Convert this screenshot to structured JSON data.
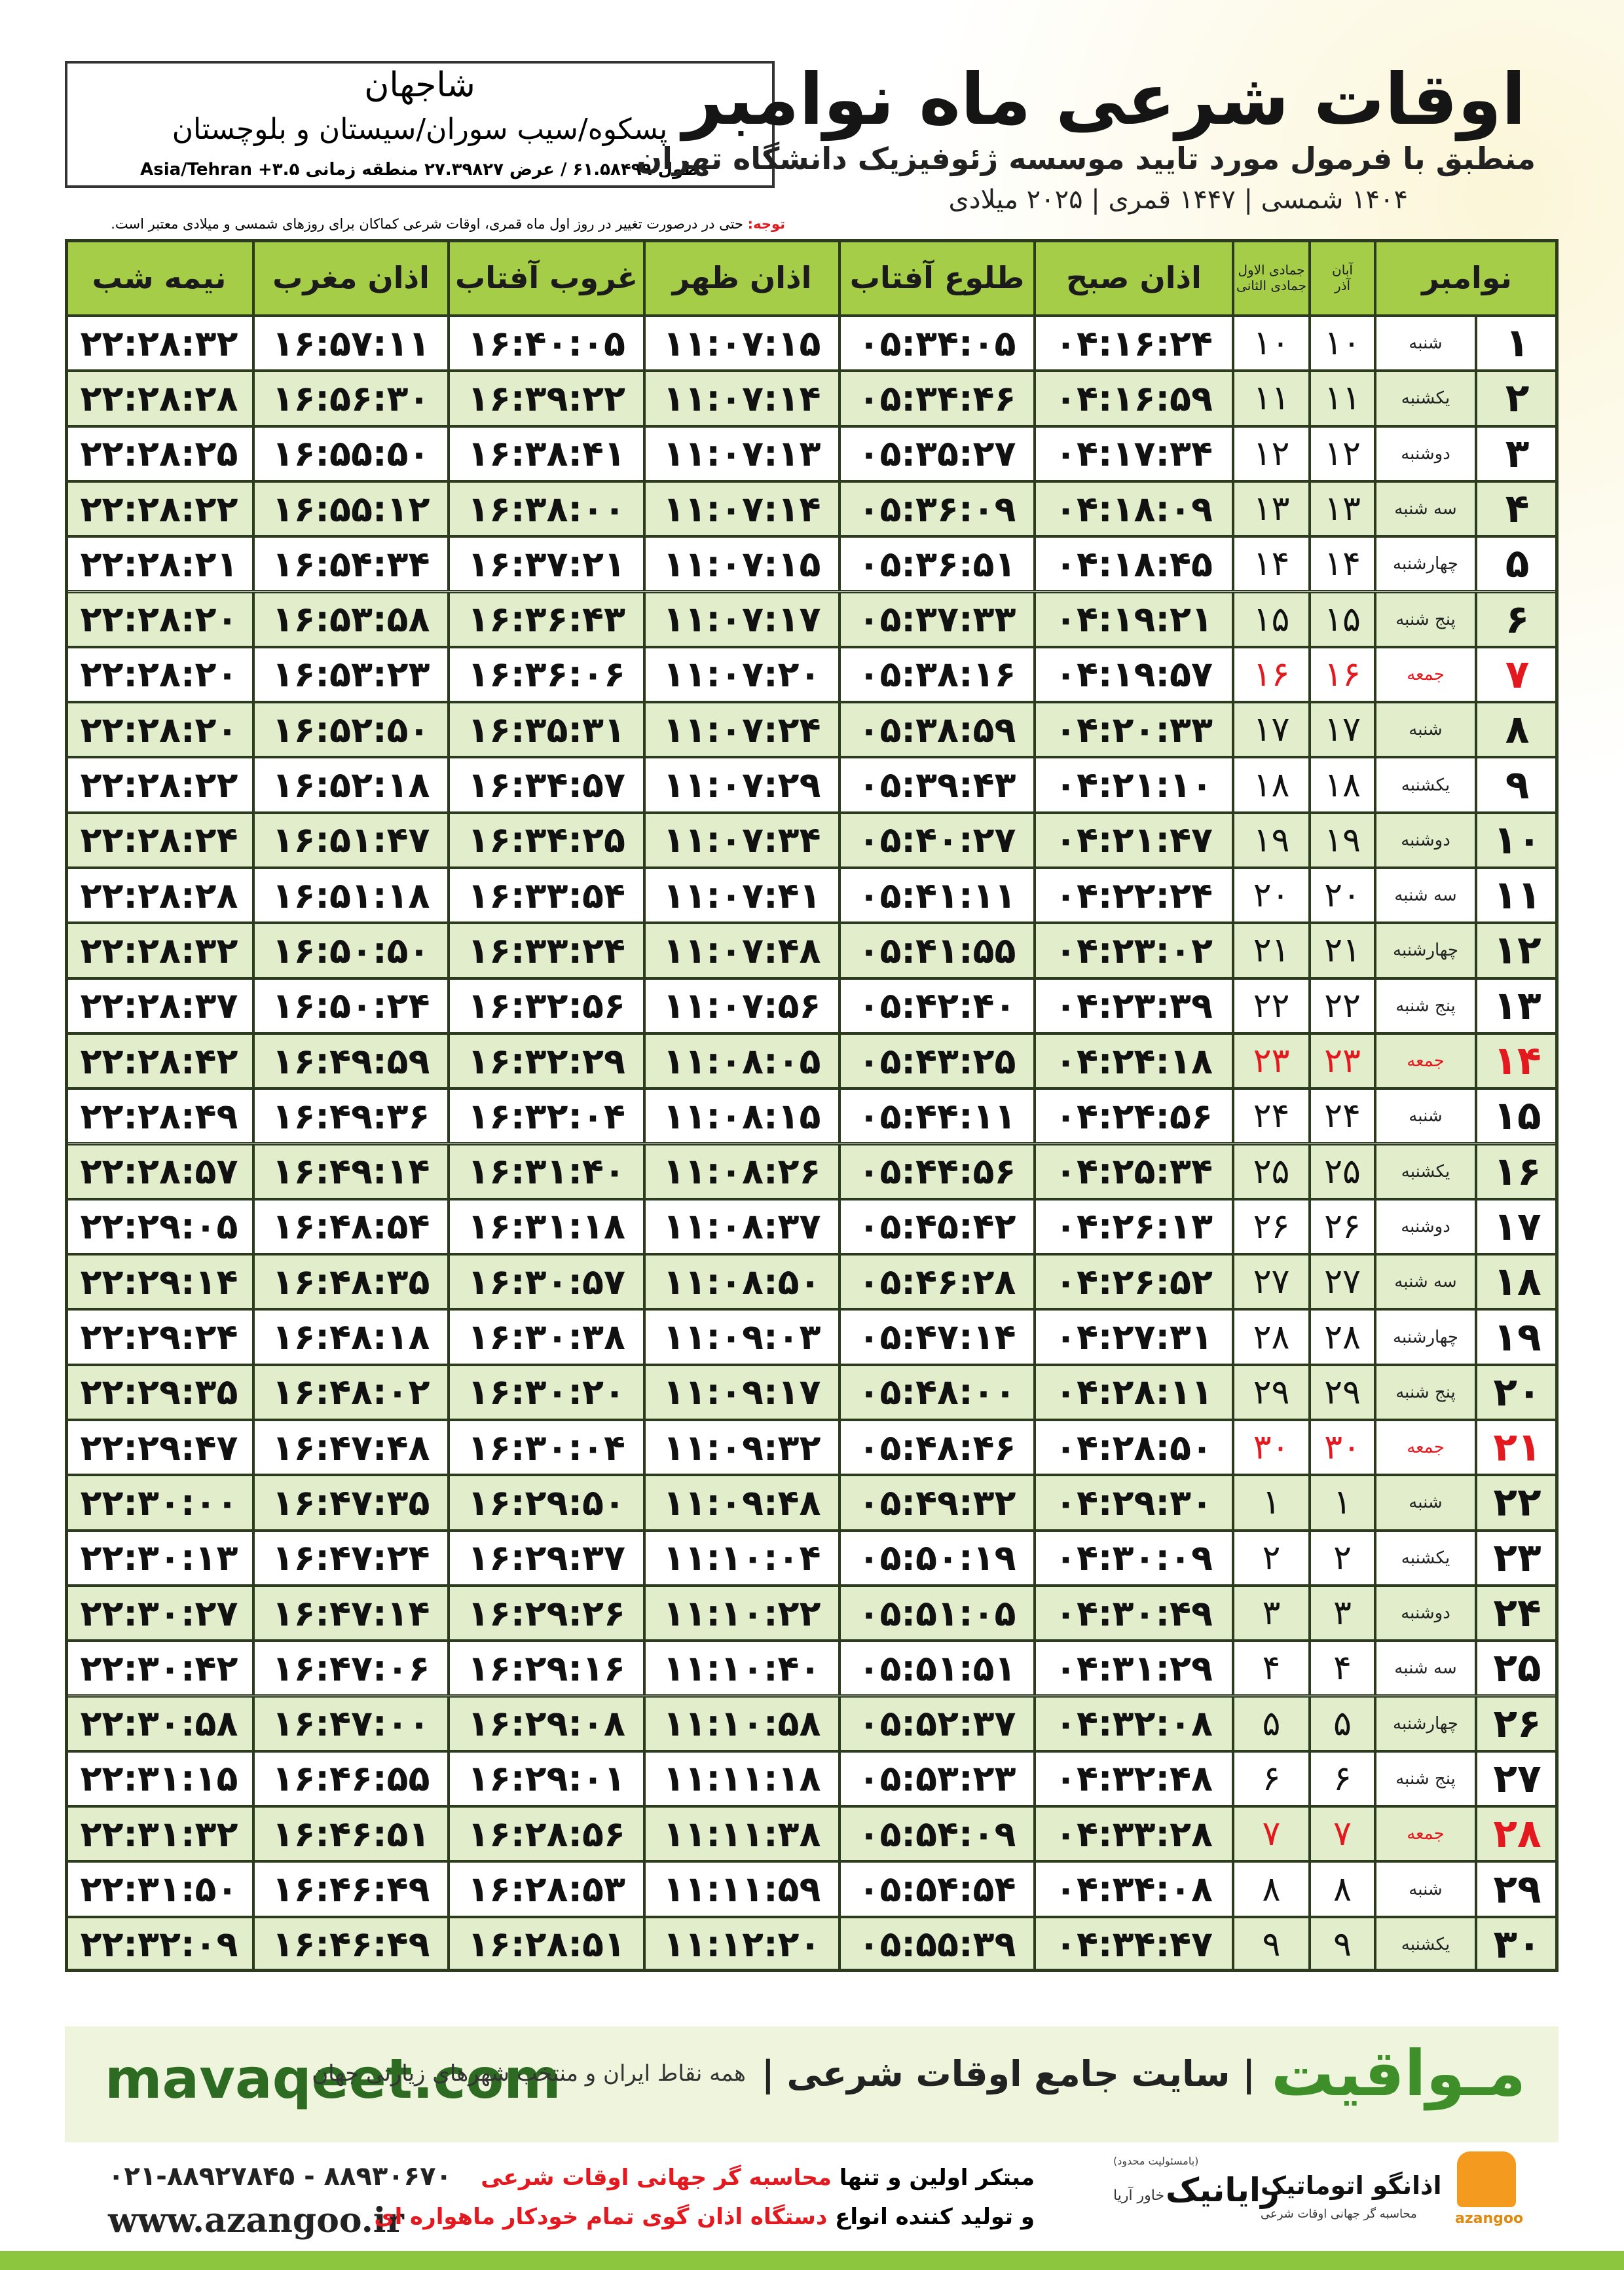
{
  "header": {
    "title": "اوقات شرعی ماه نوامبر",
    "subtitle": "منطبق با فرمول مورد تایید موسسه ژئوفیزیک دانشگاه تهران",
    "date_line": "۱۴۰۴ شمسی | ۱۴۴۷ قمری | ۲۰۲۵ میلادی",
    "note_label": "توجه:",
    "note": "حتی در درصورت تغییر در روز اول ماه قمری، اوقات شرعی کماکان برای روزهای شمسی و میلادی معتبر است."
  },
  "location": {
    "city": "شاجهان",
    "region": "پسکوه/سیب سوران/سیستان و بلوچستان",
    "coords": "طول ۶۱.۵۸۴۹۹ / عرض ۲۷.۳۹۸۲۷ منطقه زمانی ۳.۵+ Asia/Tehran"
  },
  "table": {
    "columns": [
      "نوامبر",
      [
        "آبان",
        "آذر"
      ],
      [
        "جمادی الاول",
        "جمادی الثانی"
      ],
      "اذان صبح",
      "طلوع آفتاب",
      "اذان ظهر",
      "غروب آفتاب",
      "اذان مغرب",
      "نیمه شب"
    ],
    "rows": [
      {
        "day": "۱",
        "weekday": "شنبه",
        "shamsi": "۱۰",
        "qamari": "۱۰",
        "times": [
          "۰۴:۱۶:۲۴",
          "۰۵:۳۴:۰۵",
          "۱۱:۰۷:۱۵",
          "۱۶:۴۰:۰۵",
          "۱۶:۵۷:۱۱",
          "۲۲:۲۸:۳۲"
        ]
      },
      {
        "day": "۲",
        "weekday": "یکشنبه",
        "shamsi": "۱۱",
        "qamari": "۱۱",
        "times": [
          "۰۴:۱۶:۵۹",
          "۰۵:۳۴:۴۶",
          "۱۱:۰۷:۱۴",
          "۱۶:۳۹:۲۲",
          "۱۶:۵۶:۳۰",
          "۲۲:۲۸:۲۸"
        ]
      },
      {
        "day": "۳",
        "weekday": "دوشنبه",
        "shamsi": "۱۲",
        "qamari": "۱۲",
        "times": [
          "۰۴:۱۷:۳۴",
          "۰۵:۳۵:۲۷",
          "۱۱:۰۷:۱۳",
          "۱۶:۳۸:۴۱",
          "۱۶:۵۵:۵۰",
          "۲۲:۲۸:۲۵"
        ]
      },
      {
        "day": "۴",
        "weekday": "سه شنبه",
        "shamsi": "۱۳",
        "qamari": "۱۳",
        "times": [
          "۰۴:۱۸:۰۹",
          "۰۵:۳۶:۰۹",
          "۱۱:۰۷:۱۴",
          "۱۶:۳۸:۰۰",
          "۱۶:۵۵:۱۲",
          "۲۲:۲۸:۲۲"
        ]
      },
      {
        "day": "۵",
        "weekday": "چهارشنبه",
        "shamsi": "۱۴",
        "qamari": "۱۴",
        "times": [
          "۰۴:۱۸:۴۵",
          "۰۵:۳۶:۵۱",
          "۱۱:۰۷:۱۵",
          "۱۶:۳۷:۲۱",
          "۱۶:۵۴:۳۴",
          "۲۲:۲۸:۲۱"
        ]
      },
      {
        "day": "۶",
        "weekday": "پنج شنبه",
        "shamsi": "۱۵",
        "qamari": "۱۵",
        "times": [
          "۰۴:۱۹:۲۱",
          "۰۵:۳۷:۳۳",
          "۱۱:۰۷:۱۷",
          "۱۶:۳۶:۴۳",
          "۱۶:۵۳:۵۸",
          "۲۲:۲۸:۲۰"
        ]
      },
      {
        "day": "۷",
        "weekday": "جمعه",
        "shamsi": "۱۶",
        "qamari": "۱۶",
        "times": [
          "۰۴:۱۹:۵۷",
          "۰۵:۳۸:۱۶",
          "۱۱:۰۷:۲۰",
          "۱۶:۳۶:۰۶",
          "۱۶:۵۳:۲۳",
          "۲۲:۲۸:۲۰"
        ],
        "color": "#e3191f"
      },
      {
        "day": "۸",
        "weekday": "شنبه",
        "shamsi": "۱۷",
        "qamari": "۱۷",
        "times": [
          "۰۴:۲۰:۳۳",
          "۰۵:۳۸:۵۹",
          "۱۱:۰۷:۲۴",
          "۱۶:۳۵:۳۱",
          "۱۶:۵۲:۵۰",
          "۲۲:۲۸:۲۰"
        ]
      },
      {
        "day": "۹",
        "weekday": "یکشنبه",
        "shamsi": "۱۸",
        "qamari": "۱۸",
        "times": [
          "۰۴:۲۱:۱۰",
          "۰۵:۳۹:۴۳",
          "۱۱:۰۷:۲۹",
          "۱۶:۳۴:۵۷",
          "۱۶:۵۲:۱۸",
          "۲۲:۲۸:۲۲"
        ]
      },
      {
        "day": "۱۰",
        "weekday": "دوشنبه",
        "shamsi": "۱۹",
        "qamari": "۱۹",
        "times": [
          "۰۴:۲۱:۴۷",
          "۰۵:۴۰:۲۷",
          "۱۱:۰۷:۳۴",
          "۱۶:۳۴:۲۵",
          "۱۶:۵۱:۴۷",
          "۲۲:۲۸:۲۴"
        ]
      },
      {
        "day": "۱۱",
        "weekday": "سه شنبه",
        "shamsi": "۲۰",
        "qamari": "۲۰",
        "times": [
          "۰۴:۲۲:۲۴",
          "۰۵:۴۱:۱۱",
          "۱۱:۰۷:۴۱",
          "۱۶:۳۳:۵۴",
          "۱۶:۵۱:۱۸",
          "۲۲:۲۸:۲۸"
        ]
      },
      {
        "day": "۱۲",
        "weekday": "چهارشنبه",
        "shamsi": "۲۱",
        "qamari": "۲۱",
        "times": [
          "۰۴:۲۳:۰۲",
          "۰۵:۴۱:۵۵",
          "۱۱:۰۷:۴۸",
          "۱۶:۳۳:۲۴",
          "۱۶:۵۰:۵۰",
          "۲۲:۲۸:۳۲"
        ]
      },
      {
        "day": "۱۳",
        "weekday": "پنج شنبه",
        "shamsi": "۲۲",
        "qamari": "۲۲",
        "times": [
          "۰۴:۲۳:۳۹",
          "۰۵:۴۲:۴۰",
          "۱۱:۰۷:۵۶",
          "۱۶:۳۲:۵۶",
          "۱۶:۵۰:۲۴",
          "۲۲:۲۸:۳۷"
        ]
      },
      {
        "day": "۱۴",
        "weekday": "جمعه",
        "shamsi": "۲۳",
        "qamari": "۲۳",
        "times": [
          "۰۴:۲۴:۱۸",
          "۰۵:۴۳:۲۵",
          "۱۱:۰۸:۰۵",
          "۱۶:۳۲:۲۹",
          "۱۶:۴۹:۵۹",
          "۲۲:۲۸:۴۲"
        ],
        "color": "#e3191f"
      },
      {
        "day": "۱۵",
        "weekday": "شنبه",
        "shamsi": "۲۴",
        "qamari": "۲۴",
        "times": [
          "۰۴:۲۴:۵۶",
          "۰۵:۴۴:۱۱",
          "۱۱:۰۸:۱۵",
          "۱۶:۳۲:۰۴",
          "۱۶:۴۹:۳۶",
          "۲۲:۲۸:۴۹"
        ]
      },
      {
        "day": "۱۶",
        "weekday": "یکشنبه",
        "shamsi": "۲۵",
        "qamari": "۲۵",
        "times": [
          "۰۴:۲۵:۳۴",
          "۰۵:۴۴:۵۶",
          "۱۱:۰۸:۲۶",
          "۱۶:۳۱:۴۰",
          "۱۶:۴۹:۱۴",
          "۲۲:۲۸:۵۷"
        ]
      },
      {
        "day": "۱۷",
        "weekday": "دوشنبه",
        "shamsi": "۲۶",
        "qamari": "۲۶",
        "times": [
          "۰۴:۲۶:۱۳",
          "۰۵:۴۵:۴۲",
          "۱۱:۰۸:۳۷",
          "۱۶:۳۱:۱۸",
          "۱۶:۴۸:۵۴",
          "۲۲:۲۹:۰۵"
        ]
      },
      {
        "day": "۱۸",
        "weekday": "سه شنبه",
        "shamsi": "۲۷",
        "qamari": "۲۷",
        "times": [
          "۰۴:۲۶:۵۲",
          "۰۵:۴۶:۲۸",
          "۱۱:۰۸:۵۰",
          "۱۶:۳۰:۵۷",
          "۱۶:۴۸:۳۵",
          "۲۲:۲۹:۱۴"
        ]
      },
      {
        "day": "۱۹",
        "weekday": "چهارشنبه",
        "shamsi": "۲۸",
        "qamari": "۲۸",
        "times": [
          "۰۴:۲۷:۳۱",
          "۰۵:۴۷:۱۴",
          "۱۱:۰۹:۰۳",
          "۱۶:۳۰:۳۸",
          "۱۶:۴۸:۱۸",
          "۲۲:۲۹:۲۴"
        ]
      },
      {
        "day": "۲۰",
        "weekday": "پنج شنبه",
        "shamsi": "۲۹",
        "qamari": "۲۹",
        "times": [
          "۰۴:۲۸:۱۱",
          "۰۵:۴۸:۰۰",
          "۱۱:۰۹:۱۷",
          "۱۶:۳۰:۲۰",
          "۱۶:۴۸:۰۲",
          "۲۲:۲۹:۳۵"
        ]
      },
      {
        "day": "۲۱",
        "weekday": "جمعه",
        "shamsi": "۳۰",
        "qamari": "۳۰",
        "times": [
          "۰۴:۲۸:۵۰",
          "۰۵:۴۸:۴۶",
          "۱۱:۰۹:۳۲",
          "۱۶:۳۰:۰۴",
          "۱۶:۴۷:۴۸",
          "۲۲:۲۹:۴۷"
        ],
        "color": "#e3191f"
      },
      {
        "day": "۲۲",
        "weekday": "شنبه",
        "shamsi": "۱",
        "qamari": "۱",
        "times": [
          "۰۴:۲۹:۳۰",
          "۰۵:۴۹:۳۲",
          "۱۱:۰۹:۴۸",
          "۱۶:۲۹:۵۰",
          "۱۶:۴۷:۳۵",
          "۲۲:۳۰:۰۰"
        ]
      },
      {
        "day": "۲۳",
        "weekday": "یکشنبه",
        "shamsi": "۲",
        "qamari": "۲",
        "times": [
          "۰۴:۳۰:۰۹",
          "۰۵:۵۰:۱۹",
          "۱۱:۱۰:۰۴",
          "۱۶:۲۹:۳۷",
          "۱۶:۴۷:۲۴",
          "۲۲:۳۰:۱۳"
        ]
      },
      {
        "day": "۲۴",
        "weekday": "دوشنبه",
        "shamsi": "۳",
        "qamari": "۳",
        "times": [
          "۰۴:۳۰:۴۹",
          "۰۵:۵۱:۰۵",
          "۱۱:۱۰:۲۲",
          "۱۶:۲۹:۲۶",
          "۱۶:۴۷:۱۴",
          "۲۲:۳۰:۲۷"
        ]
      },
      {
        "day": "۲۵",
        "weekday": "سه شنبه",
        "shamsi": "۴",
        "qamari": "۴",
        "times": [
          "۰۴:۳۱:۲۹",
          "۰۵:۵۱:۵۱",
          "۱۱:۱۰:۴۰",
          "۱۶:۲۹:۱۶",
          "۱۶:۴۷:۰۶",
          "۲۲:۳۰:۴۲"
        ]
      },
      {
        "day": "۲۶",
        "weekday": "چهارشنبه",
        "shamsi": "۵",
        "qamari": "۵",
        "times": [
          "۰۴:۳۲:۰۸",
          "۰۵:۵۲:۳۷",
          "۱۱:۱۰:۵۸",
          "۱۶:۲۹:۰۸",
          "۱۶:۴۷:۰۰",
          "۲۲:۳۰:۵۸"
        ]
      },
      {
        "day": "۲۷",
        "weekday": "پنج شنبه",
        "shamsi": "۶",
        "qamari": "۶",
        "times": [
          "۰۴:۳۲:۴۸",
          "۰۵:۵۳:۲۳",
          "۱۱:۱۱:۱۸",
          "۱۶:۲۹:۰۱",
          "۱۶:۴۶:۵۵",
          "۲۲:۳۱:۱۵"
        ]
      },
      {
        "day": "۲۸",
        "weekday": "جمعه",
        "shamsi": "۷",
        "qamari": "۷",
        "times": [
          "۰۴:۳۳:۲۸",
          "۰۵:۵۴:۰۹",
          "۱۱:۱۱:۳۸",
          "۱۶:۲۸:۵۶",
          "۱۶:۴۶:۵۱",
          "۲۲:۳۱:۳۲"
        ],
        "color": "#e3191f"
      },
      {
        "day": "۲۹",
        "weekday": "شنبه",
        "shamsi": "۸",
        "qamari": "۸",
        "times": [
          "۰۴:۳۴:۰۸",
          "۰۵:۵۴:۵۴",
          "۱۱:۱۱:۵۹",
          "۱۶:۲۸:۵۳",
          "۱۶:۴۶:۴۹",
          "۲۲:۳۱:۵۰"
        ]
      },
      {
        "day": "۳۰",
        "weekday": "یکشنبه",
        "shamsi": "۹",
        "qamari": "۹",
        "times": [
          "۰۴:۳۴:۴۷",
          "۰۵:۵۵:۳۹",
          "۱۱:۱۲:۲۰",
          "۱۶:۲۸:۵۱",
          "۱۶:۴۶:۴۹",
          "۲۲:۳۲:۰۹"
        ]
      }
    ]
  },
  "banner": {
    "site": "mavaqeet.com",
    "brand": "مـواقیت",
    "tagline": "| سایت جامع اوقات شرعی |",
    "scope": "همه نقاط ایران و منتخب شهرهای زیارتی جهان"
  },
  "footer": {
    "phone": "۰۲۱-۸۸۹۲۷۸۴۵ - ۸۸۹۳۰۶۷۰",
    "web": "www.azangoo.ir",
    "line1": [
      "مبتکر اولین و تنها",
      "محاسبه گر جهانی اوقات شرعی"
    ],
    "line2": [
      "و تولید کننده انواع",
      "دستگاه اذان گوی تمام خودکار ماهواره ای"
    ],
    "logo1": "رایانیک",
    "logo1_sub": "خاور آریا",
    "logo1_note": "(بامسئولیت محدود)",
    "logo2": "اذانگو اتوماتیک",
    "logo2_sub": "محاسبه گر جهانی اوقات شرعی",
    "logo2_en": "azangoo"
  }
}
